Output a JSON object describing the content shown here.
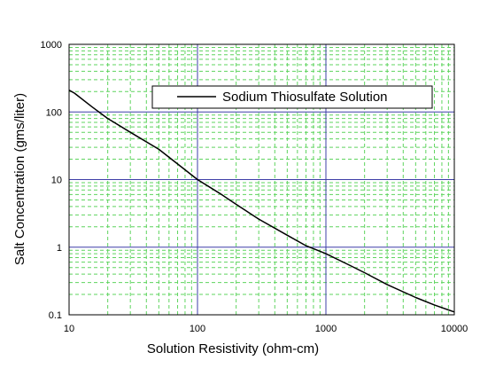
{
  "chart_data": {
    "type": "line",
    "title": "",
    "xlabel": "Solution Resistivity (ohm-cm)",
    "ylabel": "Salt Concentration (gms/liter)",
    "x_scale": "log",
    "y_scale": "log",
    "xlim": [
      10,
      10000
    ],
    "ylim": [
      0.1,
      1000
    ],
    "x_ticks": [
      "10",
      "100",
      "1000",
      "10000"
    ],
    "y_ticks": [
      "0.1",
      "1",
      "10",
      "100",
      "1000"
    ],
    "grid": true,
    "legend_position": "top-right",
    "series": [
      {
        "name": "Sodium Thiosulfate Solution",
        "color": "#000000",
        "x": [
          10,
          11,
          15,
          20,
          30,
          50,
          70,
          100,
          150,
          200,
          300,
          500,
          700,
          1000,
          1500,
          2000,
          3000,
          5000,
          7000,
          10000
        ],
        "y": [
          210,
          190,
          120,
          80,
          50,
          28,
          17,
          10,
          6.2,
          4.3,
          2.6,
          1.5,
          1.05,
          0.8,
          0.55,
          0.42,
          0.28,
          0.18,
          0.14,
          0.11
        ]
      }
    ]
  },
  "colors": {
    "major_grid": "#3f3fa8",
    "minor_grid": "#5fd45f",
    "frame": "#000000"
  }
}
